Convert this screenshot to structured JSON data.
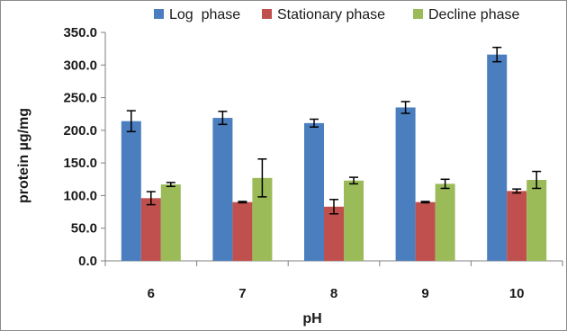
{
  "chart_data": {
    "type": "bar",
    "xlabel": "pH",
    "ylabel": "protein µg/mg",
    "categories": [
      "6",
      "7",
      "8",
      "9",
      "10"
    ],
    "ylim": [
      0,
      350
    ],
    "yticks": [
      "0.0",
      "50.0",
      "100.0",
      "150.0",
      "200.0",
      "250.0",
      "300.0",
      "350.0"
    ],
    "grid": false,
    "legend_position": "top",
    "series": [
      {
        "name": "Log  phase",
        "color": "#4a7ebf",
        "values": [
          214,
          219,
          211,
          235,
          316
        ],
        "errors": [
          16,
          10,
          6,
          9,
          11
        ]
      },
      {
        "name": "Stationary phase",
        "color": "#c0504d",
        "values": [
          96,
          90,
          83,
          90,
          107
        ],
        "errors": [
          10,
          1,
          11,
          1,
          3
        ]
      },
      {
        "name": "Decline phase",
        "color": "#9bbb59",
        "values": [
          117,
          127,
          123,
          118,
          124
        ],
        "errors": [
          3,
          29,
          5,
          7,
          13
        ]
      }
    ]
  }
}
